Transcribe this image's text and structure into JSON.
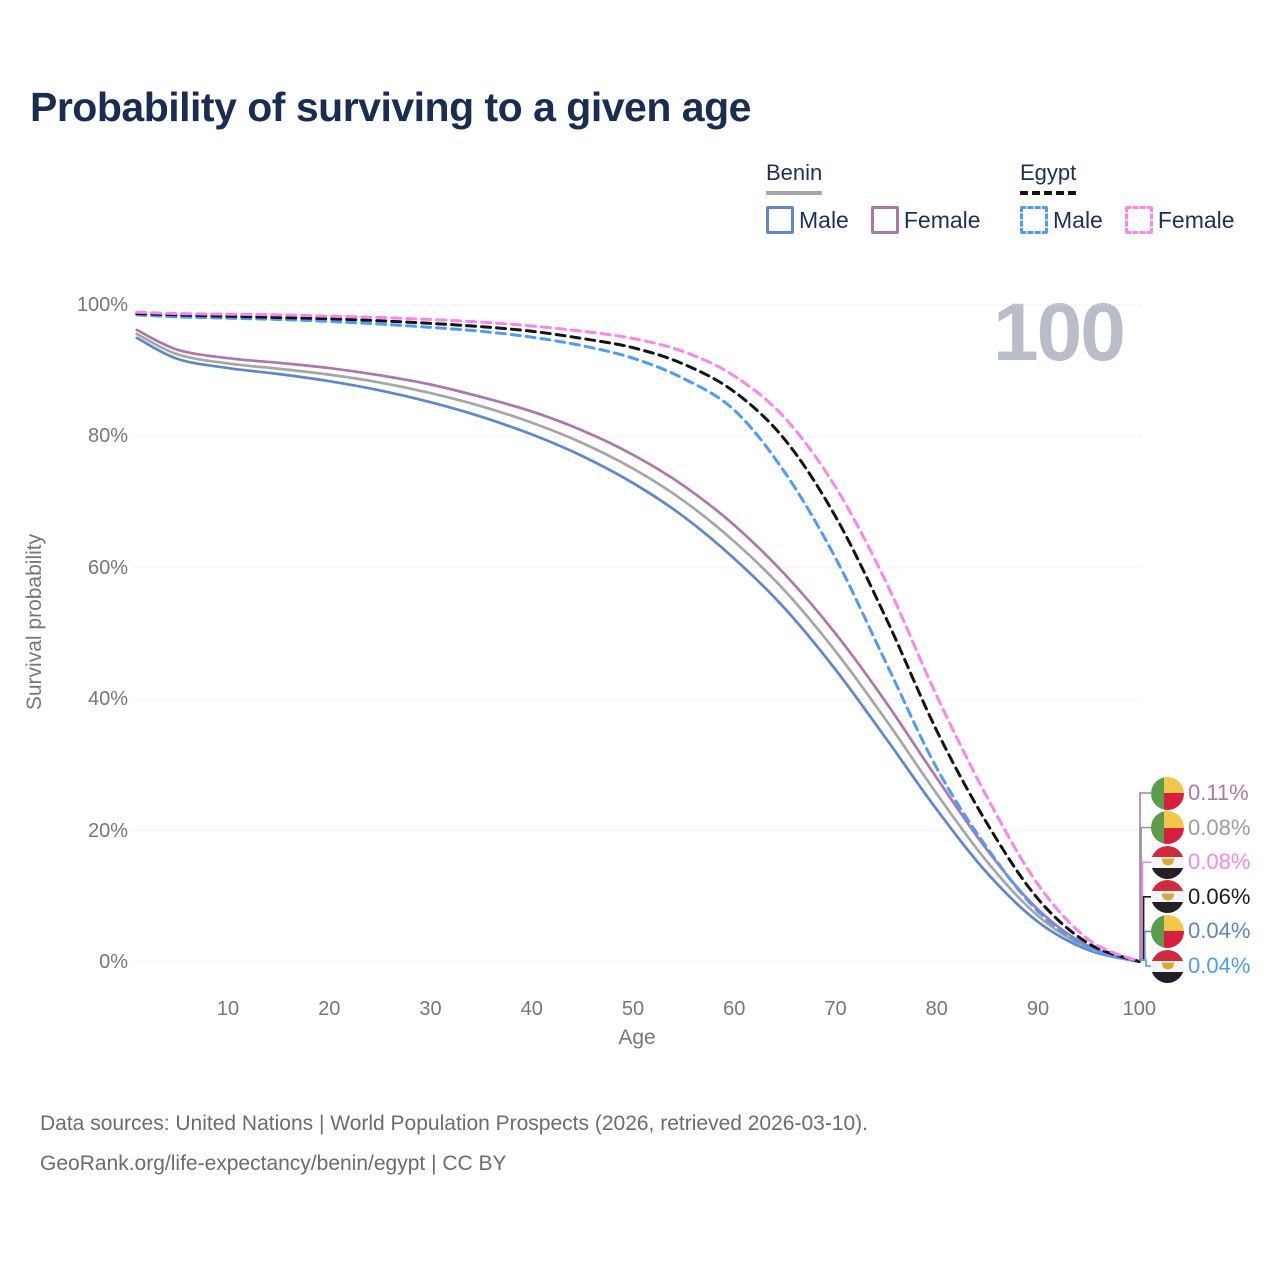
{
  "title": "Probability of surviving to a given age",
  "watermark": "100",
  "legend": {
    "benin": {
      "label": "Benin",
      "male": "Male",
      "female": "Female"
    },
    "egypt": {
      "label": "Egypt",
      "male": "Male",
      "female": "Female"
    }
  },
  "axes": {
    "x": {
      "label": "Age",
      "ticks": [
        10,
        20,
        30,
        40,
        50,
        60,
        70,
        80,
        90,
        100
      ],
      "min": 1,
      "max": 100
    },
    "y": {
      "label": "Survival probability",
      "ticks": [
        0,
        20,
        40,
        60,
        80,
        100
      ],
      "unit": "%",
      "min": 0,
      "max": 100
    }
  },
  "colors": {
    "title_text": "#192c52",
    "legend_text": "#1e3055",
    "axis_text": "#74777e",
    "grid": "#e2e2e7",
    "watermark": "#b9bdc7",
    "footer_text": "#6c6c6c",
    "benin_male": "#5f87c9",
    "benin_female": "#ad77ad",
    "benin_all": "#a6a6a6",
    "egypt_male": "#4f9bf7",
    "egypt_female": "#fb85e8",
    "egypt_all": "#141414"
  },
  "end_labels": [
    {
      "flag": "benin",
      "series": "Benin Female",
      "value": "0.11%",
      "color": "#a87ca6"
    },
    {
      "flag": "benin",
      "series": "Benin Both sexes",
      "value": "0.08%",
      "color": "#9c9c9c"
    },
    {
      "flag": "egypt",
      "series": "Egypt Female",
      "value": "0.08%",
      "color": "#fb85e8"
    },
    {
      "flag": "egypt",
      "series": "Egypt Both sexes",
      "value": "0.06%",
      "color": "#1d1d1d"
    },
    {
      "flag": "benin",
      "series": "Benin Male",
      "value": "0.04%",
      "color": "#5c86c6"
    },
    {
      "flag": "egypt",
      "series": "Egypt Male",
      "value": "0.04%",
      "color": "#4f9bf7"
    }
  ],
  "footer": {
    "line1": "Data sources: United Nations | World Population Prospects (2026, retrieved 2026-03-10).",
    "line2": "GeoRank.org/life-expectancy/benin/egypt | CC BY"
  },
  "chart_data": {
    "type": "line",
    "title": "Probability of surviving to a given age",
    "xlabel": "Age",
    "ylabel": "Survival probability",
    "xlim": [
      1,
      100
    ],
    "ylim": [
      0,
      100
    ],
    "grid": "horizontal",
    "legend_position": "top-right",
    "x": [
      1,
      5,
      10,
      15,
      20,
      25,
      30,
      35,
      40,
      45,
      50,
      55,
      60,
      65,
      70,
      75,
      80,
      85,
      90,
      95,
      100
    ],
    "series": [
      {
        "name": "Benin Male",
        "color": "#5f87c9",
        "dash": false,
        "values": [
          95.0,
          91.8,
          90.4,
          89.5,
          88.4,
          87.0,
          85.2,
          83.0,
          80.3,
          77.0,
          72.9,
          67.8,
          61.4,
          53.8,
          44.5,
          34.0,
          23.2,
          13.5,
          6.1,
          1.8,
          0.04
        ]
      },
      {
        "name": "Benin Both sexes",
        "color": "#a6a6a6",
        "dash": false,
        "values": [
          95.6,
          92.5,
          91.1,
          90.3,
          89.4,
          88.2,
          86.6,
          84.6,
          82.1,
          79.0,
          75.1,
          70.2,
          64.0,
          56.5,
          47.3,
          36.8,
          25.6,
          15.2,
          7.0,
          2.1,
          0.08
        ]
      },
      {
        "name": "Benin Female",
        "color": "#ad77ad",
        "dash": false,
        "values": [
          96.2,
          93.2,
          91.9,
          91.2,
          90.4,
          89.3,
          87.9,
          86.0,
          83.8,
          80.9,
          77.2,
          72.5,
          66.5,
          59.0,
          50.0,
          39.5,
          28.0,
          17.0,
          8.0,
          2.4,
          0.11
        ]
      },
      {
        "name": "Egypt Male",
        "color": "#4f9bf7",
        "dash": true,
        "values": [
          98.5,
          98.2,
          98.0,
          97.8,
          97.5,
          97.1,
          96.6,
          96.0,
          95.1,
          93.8,
          91.9,
          88.8,
          84.0,
          74.5,
          61.5,
          45.5,
          29.5,
          17.3,
          7.7,
          2.2,
          0.04
        ]
      },
      {
        "name": "Egypt Both sexes",
        "color": "#141414",
        "dash": true,
        "values": [
          98.7,
          98.5,
          98.3,
          98.1,
          97.9,
          97.6,
          97.2,
          96.7,
          96.0,
          94.9,
          93.5,
          91.0,
          86.8,
          79.5,
          67.8,
          52.3,
          35.2,
          21.0,
          9.6,
          2.8,
          0.06
        ]
      },
      {
        "name": "Egypt Female",
        "color": "#fb85e8",
        "dash": true,
        "values": [
          98.9,
          98.7,
          98.6,
          98.5,
          98.3,
          98.1,
          97.8,
          97.4,
          96.8,
          96.0,
          94.9,
          92.9,
          89.2,
          82.8,
          72.3,
          57.8,
          40.5,
          25.0,
          11.8,
          3.4,
          0.08
        ]
      }
    ]
  }
}
